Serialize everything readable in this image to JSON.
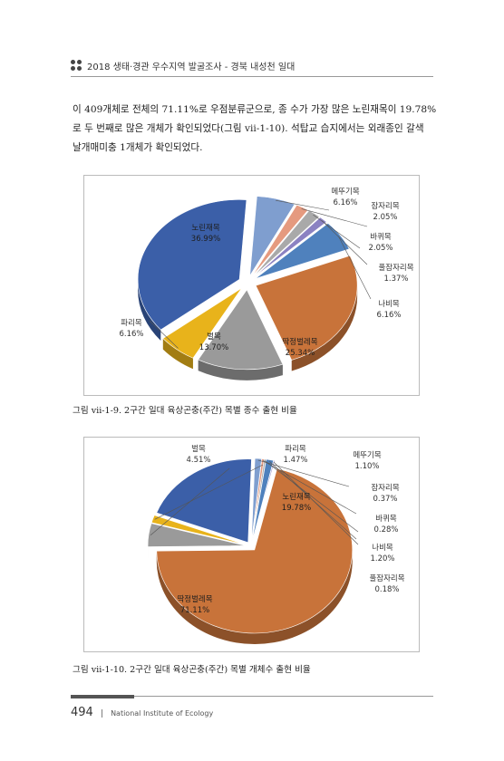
{
  "header": {
    "title": "2018 생태·경관 우수지역 발굴조사 - 경북 내성천 일대"
  },
  "body_text": {
    "line1": "이 409개체로 전체의 71.11%로 우점분류군으로, 종 수가 가장 많은 노린재목이 19.78%",
    "line2": "로 두 번째로 많은 개체가 확인되었다(그림 vii-1-10). 석탑교 습지에서는 외래종인 갈색",
    "line3": "날개매미충 1개체가 확인되었다."
  },
  "captions": {
    "fig1": "그림 ⅶ-1-9. 2구간 일대 육상곤충(주간) 목별 종수 출현 비율",
    "fig2": "그림 ⅶ-1-10. 2구간 일대 육상곤충(주간) 목별 개체수 출현 비율"
  },
  "footer": {
    "page_number": "494",
    "separator": "|",
    "institution": "National Institute of Ecology"
  },
  "chart_data": [
    {
      "type": "pie",
      "title": "",
      "slices": [
        {
          "label": "메뚜기목",
          "value": 6.16,
          "value_label": "6.16%",
          "color": "#7f9ecf"
        },
        {
          "label": "잠자리목",
          "value": 2.05,
          "value_label": "2.05%",
          "color": "#e59a7f"
        },
        {
          "label": "바퀴목",
          "value": 2.05,
          "value_label": "2.05%",
          "color": "#a9a9a9"
        },
        {
          "label": "풀잠자리목",
          "value": 1.37,
          "value_label": "1.37%",
          "color": "#8b82c2"
        },
        {
          "label": "나비목",
          "value": 6.16,
          "value_label": "6.16%",
          "color": "#4f81bd"
        },
        {
          "label": "딱정벌레목",
          "value": 25.34,
          "value_label": "25.34%",
          "color": "#c8733a"
        },
        {
          "label": "벌목",
          "value": 13.7,
          "value_label": "13.70%",
          "color": "#9a9a9a"
        },
        {
          "label": "파리목",
          "value": 6.16,
          "value_label": "6.16%",
          "color": "#e8b31b"
        },
        {
          "label": "노린재목",
          "value": 36.99,
          "value_label": "36.99%",
          "color": "#3b5fa8"
        }
      ]
    },
    {
      "type": "pie",
      "title": "",
      "slices": [
        {
          "label": "메뚜기목",
          "value": 1.1,
          "value_label": "1.10%",
          "color": "#7f9ecf"
        },
        {
          "label": "잠자리목",
          "value": 0.37,
          "value_label": "0.37%",
          "color": "#e59a7f"
        },
        {
          "label": "바퀴목",
          "value": 0.28,
          "value_label": "0.28%",
          "color": "#a9a9a9"
        },
        {
          "label": "나비목",
          "value": 1.2,
          "value_label": "1.20%",
          "color": "#4f81bd"
        },
        {
          "label": "풀잠자리목",
          "value": 0.18,
          "value_label": "0.18%",
          "color": "#8b82c2"
        },
        {
          "label": "딱정벌레목",
          "value": 71.11,
          "value_label": "71.11%",
          "color": "#c8733a"
        },
        {
          "label": "벌목",
          "value": 4.51,
          "value_label": "4.51%",
          "color": "#9a9a9a"
        },
        {
          "label": "파리목",
          "value": 1.47,
          "value_label": "1.47%",
          "color": "#e8b31b"
        },
        {
          "label": "노린재목",
          "value": 19.78,
          "value_label": "19.78%",
          "color": "#3b5fa8"
        }
      ]
    }
  ]
}
